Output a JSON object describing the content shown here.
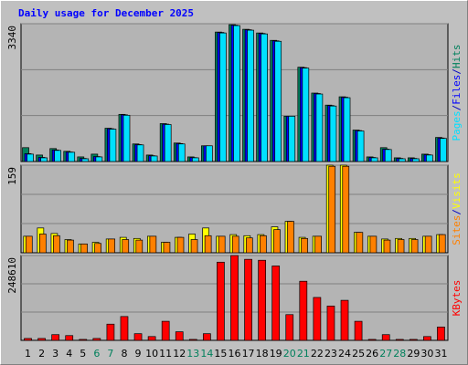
{
  "chart_data": [
    {
      "type": "bar",
      "title": "Daily usage for December 2025",
      "title_color": "#0000ff",
      "legend_separator": "/",
      "separator_color": "#0000c0",
      "ylim": [
        0,
        3340
      ],
      "yticks": [
        3340
      ],
      "series": [
        {
          "name": "Hits",
          "color": "#00805c",
          "values": [
            336,
            157,
            314,
            247,
            112,
            179,
            807,
            1143,
            426,
            157,
            919,
            448,
            112,
            381,
            3138,
            3318,
            3205,
            3116,
            2937,
            1098,
            2286,
            1659,
            1367,
            1569,
            762,
            112,
            336,
            90,
            90,
            179,
            583
          ]
        },
        {
          "name": "Files",
          "color": "#0000ff",
          "values": [
            190,
            100,
            280,
            230,
            75,
            120,
            795,
            1132,
            410,
            140,
            905,
            435,
            95,
            381,
            3128,
            3305,
            3194,
            3104,
            2925,
            1098,
            2275,
            1648,
            1356,
            1558,
            750,
            98,
            300,
            75,
            75,
            165,
            570
          ]
        },
        {
          "name": "Pages",
          "color": "#00e0ff",
          "values": [
            179,
            90,
            269,
            224,
            67,
            112,
            785,
            1121,
            403,
            134,
            897,
            426,
            90,
            381,
            3116,
            3295,
            3183,
            3093,
            2914,
            1098,
            2264,
            1636,
            1345,
            1547,
            740,
            90,
            291,
            67,
            67,
            157,
            560
          ]
        }
      ]
    },
    {
      "type": "bar",
      "legend_separator": "/",
      "separator_color": "#0000c0",
      "ylim": [
        0,
        159
      ],
      "yticks": [
        159
      ],
      "series": [
        {
          "name": "Visits",
          "color": "#ffff00",
          "values": [
            30,
            45,
            35,
            24,
            16,
            19,
            25,
            28,
            26,
            30,
            19,
            28,
            34,
            45,
            30,
            33,
            31,
            33,
            47,
            57,
            28,
            30,
            159,
            159,
            37,
            30,
            25,
            26,
            26,
            30,
            33
          ]
        },
        {
          "name": "Sites",
          "color": "#ff8000",
          "values": [
            30,
            34,
            31,
            23,
            16,
            17,
            25,
            24,
            23,
            30,
            19,
            28,
            24,
            31,
            30,
            30,
            27,
            31,
            42,
            57,
            26,
            30,
            157,
            157,
            37,
            30,
            23,
            24,
            24,
            30,
            33
          ]
        }
      ]
    },
    {
      "type": "bar",
      "ylim": [
        0,
        248610
      ],
      "yticks": [
        248610
      ],
      "series": [
        {
          "name": "KBytes",
          "color": "#ff0000",
          "values": [
            5587,
            5587,
            16760,
            13967,
            2793,
            5587,
            47487,
            69834,
            19554,
            11173,
            55867,
            25140,
            2793,
            19554,
            229057,
            248610,
            237436,
            234643,
            217884,
            75421,
            173190,
            125700,
            100560,
            117320,
            55867,
            2793,
            16760,
            2793,
            2793,
            11173,
            39107
          ]
        }
      ],
      "categories": [
        "1",
        "2",
        "3",
        "4",
        "5",
        "6",
        "7",
        "8",
        "9",
        "10",
        "11",
        "12",
        "13",
        "14",
        "15",
        "16",
        "17",
        "18",
        "19",
        "20",
        "21",
        "22",
        "23",
        "24",
        "25",
        "26",
        "27",
        "28",
        "29",
        "30",
        "31"
      ],
      "category_colors": [
        "#000000",
        "#000000",
        "#000000",
        "#000000",
        "#000000",
        "#00805c",
        "#00805c",
        "#000000",
        "#000000",
        "#000000",
        "#000000",
        "#000000",
        "#00805c",
        "#00805c",
        "#000000",
        "#000000",
        "#000000",
        "#000000",
        "#000000",
        "#00805c",
        "#00805c",
        "#000000",
        "#000000",
        "#000000",
        "#000000",
        "#000000",
        "#00805c",
        "#00805c",
        "#000000",
        "#000000",
        "#000000"
      ]
    }
  ]
}
